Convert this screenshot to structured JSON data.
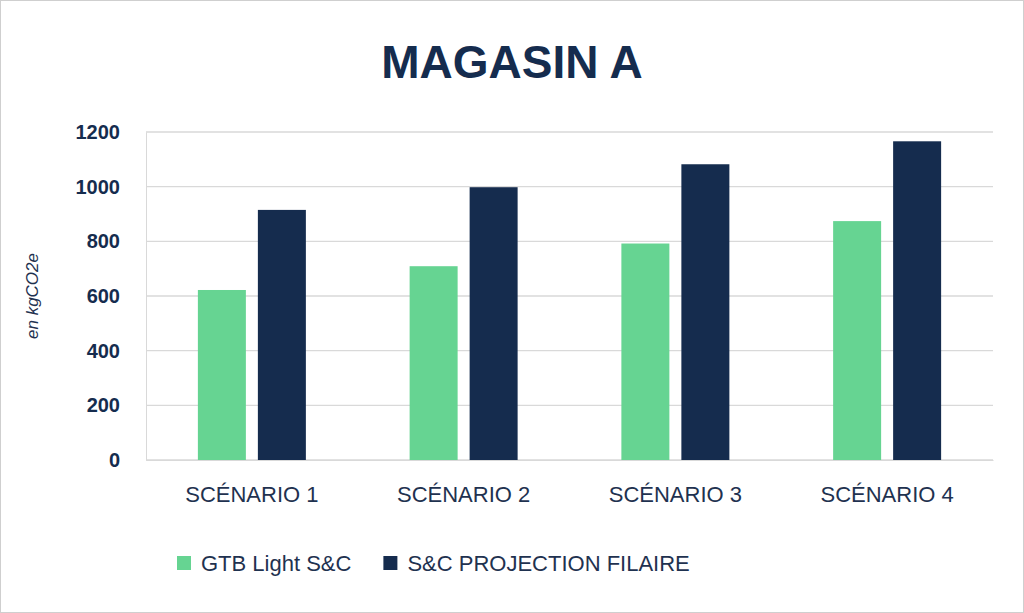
{
  "chart_data": {
    "type": "bar",
    "title": "MAGASIN A",
    "y_label": "en kgCO2e",
    "categories": [
      "SCÉNARIO 1",
      "SCÉNARIO 2",
      "SCÉNARIO 3",
      "SCÉNARIO 4"
    ],
    "series": [
      {
        "name": "GTB Light S&C",
        "color": "#66d492",
        "values": [
          622,
          709,
          792,
          874
        ]
      },
      {
        "name": "S&C PROJECTION FILAIRE",
        "color": "#152c4e",
        "values": [
          915,
          998,
          1082,
          1166
        ]
      }
    ],
    "ylim": [
      0,
      1200
    ],
    "yticks": [
      0,
      200,
      400,
      600,
      800,
      1000,
      1200
    ],
    "grid": true,
    "legend": "bottom"
  }
}
